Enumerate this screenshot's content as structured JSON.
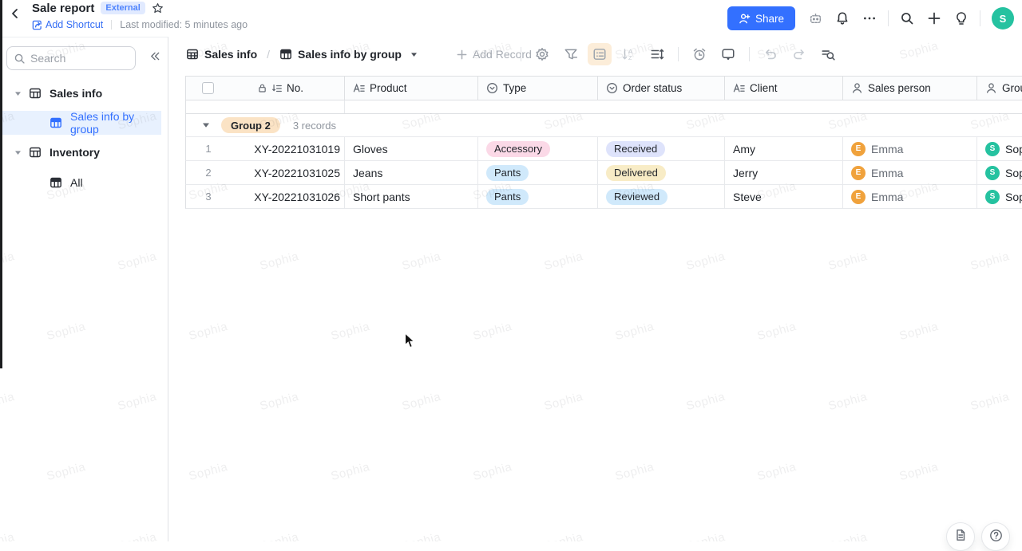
{
  "header": {
    "title": "Sale report",
    "external_badge": "External",
    "add_shortcut": "Add Shortcut",
    "last_modified": "Last modified: 5 minutes ago",
    "share": "Share",
    "avatar_initial": "S"
  },
  "sidebar": {
    "search_placeholder": "Search",
    "items": {
      "sales_info": "Sales info",
      "sales_info_by_group": "Sales info by group",
      "inventory": "Inventory",
      "all": "All"
    }
  },
  "toolbar": {
    "table_name": "Sales info",
    "view_name": "Sales info by group",
    "add_record": "Add Record"
  },
  "table": {
    "columns": {
      "no": "No.",
      "product": "Product",
      "type": "Type",
      "order_status": "Order status",
      "client": "Client",
      "sales_person": "Sales person",
      "group": "Group"
    },
    "group": {
      "label": "Group 2",
      "count": "3 records",
      "badge_color": "#fbe3c5"
    },
    "rows": [
      {
        "num": "1",
        "no": "XY-20221031019",
        "product": "Gloves",
        "type": "Accessory",
        "type_color": "#fbd9e7",
        "status": "Received",
        "status_color": "#dee3fb",
        "client": "Amy",
        "sales_person": "Emma",
        "sales_avatar": "E",
        "sales_avatar_color": "#f0a23c",
        "group_person": "Sophia",
        "group_avatar": "S",
        "group_avatar_color": "#25c2a0"
      },
      {
        "num": "2",
        "no": "XY-20221031025",
        "product": "Jeans",
        "type": "Pants",
        "type_color": "#d0e9fb",
        "status": "Delivered",
        "status_color": "#f8ecc6",
        "client": "Jerry",
        "sales_person": "Emma",
        "sales_avatar": "E",
        "sales_avatar_color": "#f0a23c",
        "group_person": "Sophia",
        "group_avatar": "S",
        "group_avatar_color": "#25c2a0"
      },
      {
        "num": "3",
        "no": "XY-20221031026",
        "product": "Short pants",
        "type": "Pants",
        "type_color": "#d0e9fb",
        "status": "Reviewed",
        "status_color": "#d0e9fb",
        "client": "Steve",
        "sales_person": "Emma",
        "sales_avatar": "E",
        "sales_avatar_color": "#f0a23c",
        "group_person": "Sophia",
        "group_avatar": "S",
        "group_avatar_color": "#25c2a0"
      }
    ]
  },
  "watermark": {
    "text": "Sophia"
  },
  "colors": {
    "accent": "#3370ff",
    "avatar_green": "#25c2a0",
    "avatar_orange": "#f0a23c",
    "active_tool_bg": "#fcedd9"
  }
}
